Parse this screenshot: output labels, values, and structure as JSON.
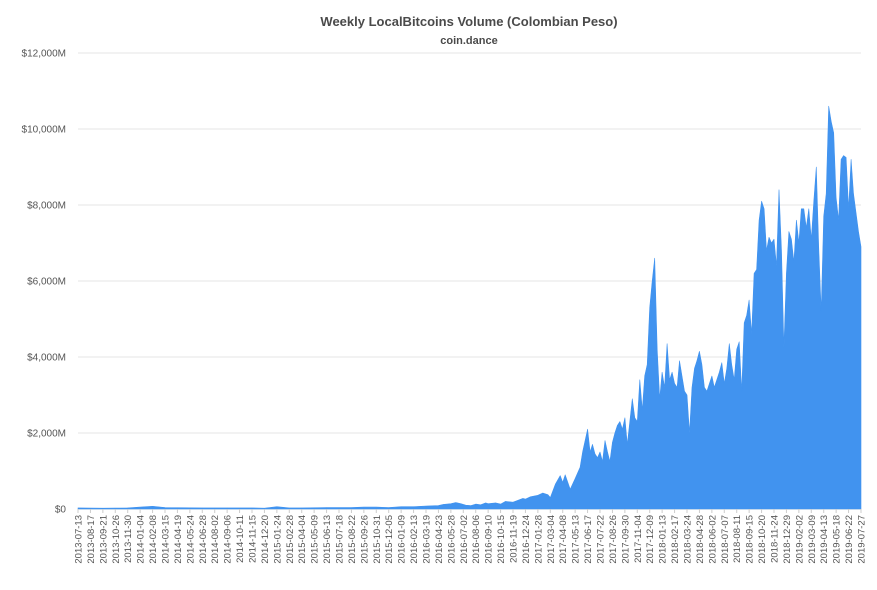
{
  "chart_data": {
    "type": "area",
    "title": "Weekly LocalBitcoins Volume (Colombian Peso)",
    "subtitle": "coin.dance",
    "xlabel": "",
    "ylabel": "",
    "ylim": [
      0,
      12000
    ],
    "y_unit": "M",
    "y_ticks": [
      "$0",
      "$2,000M",
      "$4,000M",
      "$6,000M",
      "$8,000M",
      "$10,000M",
      "$12,000M"
    ],
    "x_tick_labels": [
      "2013-07-13",
      "2013-08-17",
      "2013-09-21",
      "2013-10-26",
      "2013-11-30",
      "2014-01-04",
      "2014-02-08",
      "2014-03-15",
      "2014-04-19",
      "2014-05-24",
      "2014-06-28",
      "2014-08-02",
      "2014-09-06",
      "2014-10-11",
      "2014-11-15",
      "2014-12-20",
      "2015-01-24",
      "2015-02-28",
      "2015-04-04",
      "2015-05-09",
      "2015-06-13",
      "2015-07-18",
      "2015-08-22",
      "2015-09-26",
      "2015-10-31",
      "2015-12-05",
      "2016-01-09",
      "2016-02-13",
      "2016-03-19",
      "2016-04-23",
      "2016-05-28",
      "2016-07-02",
      "2016-08-06",
      "2016-09-10",
      "2016-10-15",
      "2016-11-19",
      "2016-12-24",
      "2017-01-28",
      "2017-03-04",
      "2017-04-08",
      "2017-05-13",
      "2017-06-17",
      "2017-07-22",
      "2017-08-26",
      "2017-09-30",
      "2017-11-04",
      "2017-12-09",
      "2018-01-13",
      "2018-02-17",
      "2018-03-24",
      "2018-04-28",
      "2018-06-02",
      "2018-07-07",
      "2018-08-11",
      "2018-09-15",
      "2018-10-20",
      "2018-11-24",
      "2018-12-29",
      "2019-02-02",
      "2019-03-09",
      "2019-04-13",
      "2019-05-18",
      "2019-06-22",
      "2019-07-27"
    ],
    "series": [
      {
        "color": "#4193ef",
        "points": [
          [
            "2013-07-13",
            30
          ],
          [
            "2013-09-21",
            20
          ],
          [
            "2013-11-30",
            30
          ],
          [
            "2014-01-04",
            50
          ],
          [
            "2014-02-08",
            70
          ],
          [
            "2014-03-15",
            40
          ],
          [
            "2014-06-28",
            30
          ],
          [
            "2014-09-06",
            30
          ],
          [
            "2014-11-15",
            30
          ],
          [
            "2014-12-20",
            20
          ],
          [
            "2015-01-24",
            60
          ],
          [
            "2015-02-28",
            30
          ],
          [
            "2015-04-04",
            30
          ],
          [
            "2015-06-13",
            40
          ],
          [
            "2015-08-22",
            40
          ],
          [
            "2015-09-26",
            50
          ],
          [
            "2015-10-31",
            50
          ],
          [
            "2015-12-05",
            40
          ],
          [
            "2016-01-09",
            60
          ],
          [
            "2016-02-13",
            60
          ],
          [
            "2016-03-19",
            80
          ],
          [
            "2016-04-23",
            90
          ],
          [
            "2016-05-07",
            120
          ],
          [
            "2016-05-28",
            140
          ],
          [
            "2016-06-11",
            170
          ],
          [
            "2016-06-25",
            140
          ],
          [
            "2016-07-09",
            100
          ],
          [
            "2016-07-23",
            90
          ],
          [
            "2016-08-06",
            130
          ],
          [
            "2016-08-20",
            110
          ],
          [
            "2016-09-03",
            160
          ],
          [
            "2016-09-10",
            140
          ],
          [
            "2016-10-01",
            160
          ],
          [
            "2016-10-15",
            130
          ],
          [
            "2016-10-29",
            200
          ],
          [
            "2016-11-19",
            180
          ],
          [
            "2016-12-03",
            230
          ],
          [
            "2016-12-17",
            280
          ],
          [
            "2016-12-24",
            260
          ],
          [
            "2017-01-07",
            320
          ],
          [
            "2017-01-28",
            360
          ],
          [
            "2017-02-11",
            420
          ],
          [
            "2017-02-25",
            380
          ],
          [
            "2017-03-04",
            300
          ],
          [
            "2017-03-18",
            650
          ],
          [
            "2017-04-01",
            880
          ],
          [
            "2017-04-08",
            700
          ],
          [
            "2017-04-15",
            900
          ],
          [
            "2017-04-29",
            520
          ],
          [
            "2017-05-13",
            800
          ],
          [
            "2017-05-27",
            1100
          ],
          [
            "2017-06-03",
            1500
          ],
          [
            "2017-06-10",
            1800
          ],
          [
            "2017-06-17",
            2100
          ],
          [
            "2017-06-24",
            1500
          ],
          [
            "2017-07-01",
            1700
          ],
          [
            "2017-07-08",
            1450
          ],
          [
            "2017-07-15",
            1350
          ],
          [
            "2017-07-22",
            1500
          ],
          [
            "2017-07-29",
            1250
          ],
          [
            "2017-08-05",
            1800
          ],
          [
            "2017-08-12",
            1500
          ],
          [
            "2017-08-19",
            1250
          ],
          [
            "2017-08-26",
            1750
          ],
          [
            "2017-09-02",
            2000
          ],
          [
            "2017-09-09",
            2200
          ],
          [
            "2017-09-16",
            2300
          ],
          [
            "2017-09-23",
            2100
          ],
          [
            "2017-09-30",
            2400
          ],
          [
            "2017-10-07",
            1700
          ],
          [
            "2017-10-14",
            2300
          ],
          [
            "2017-10-21",
            2900
          ],
          [
            "2017-10-28",
            2400
          ],
          [
            "2017-11-04",
            2300
          ],
          [
            "2017-11-11",
            3400
          ],
          [
            "2017-11-18",
            2600
          ],
          [
            "2017-11-25",
            3500
          ],
          [
            "2017-12-02",
            3800
          ],
          [
            "2017-12-09",
            5300
          ],
          [
            "2017-12-16",
            6000
          ],
          [
            "2017-12-23",
            6600
          ],
          [
            "2017-12-30",
            4200
          ],
          [
            "2018-01-06",
            2900
          ],
          [
            "2018-01-13",
            3600
          ],
          [
            "2018-01-20",
            3200
          ],
          [
            "2018-01-27",
            4350
          ],
          [
            "2018-02-03",
            3400
          ],
          [
            "2018-02-10",
            3600
          ],
          [
            "2018-02-17",
            3300
          ],
          [
            "2018-02-24",
            3200
          ],
          [
            "2018-03-03",
            3900
          ],
          [
            "2018-03-10",
            3500
          ],
          [
            "2018-03-17",
            3100
          ],
          [
            "2018-03-24",
            3000
          ],
          [
            "2018-03-31",
            2000
          ],
          [
            "2018-04-07",
            3200
          ],
          [
            "2018-04-14",
            3700
          ],
          [
            "2018-04-21",
            3900
          ],
          [
            "2018-04-28",
            4150
          ],
          [
            "2018-05-05",
            3800
          ],
          [
            "2018-05-12",
            3200
          ],
          [
            "2018-05-19",
            3100
          ],
          [
            "2018-05-26",
            3300
          ],
          [
            "2018-06-02",
            3500
          ],
          [
            "2018-06-09",
            3200
          ],
          [
            "2018-06-16",
            3400
          ],
          [
            "2018-06-23",
            3600
          ],
          [
            "2018-06-30",
            3850
          ],
          [
            "2018-07-07",
            3300
          ],
          [
            "2018-07-14",
            3700
          ],
          [
            "2018-07-21",
            4350
          ],
          [
            "2018-07-28",
            3800
          ],
          [
            "2018-08-04",
            3400
          ],
          [
            "2018-08-11",
            4200
          ],
          [
            "2018-08-18",
            4400
          ],
          [
            "2018-08-25",
            3100
          ],
          [
            "2018-09-01",
            4900
          ],
          [
            "2018-09-08",
            5100
          ],
          [
            "2018-09-15",
            5500
          ],
          [
            "2018-09-22",
            4600
          ],
          [
            "2018-09-29",
            6200
          ],
          [
            "2018-10-06",
            6300
          ],
          [
            "2018-10-13",
            7600
          ],
          [
            "2018-10-20",
            8100
          ],
          [
            "2018-10-27",
            7900
          ],
          [
            "2018-11-03",
            6800
          ],
          [
            "2018-11-10",
            7150
          ],
          [
            "2018-11-17",
            7000
          ],
          [
            "2018-11-24",
            7100
          ],
          [
            "2018-12-01",
            6400
          ],
          [
            "2018-12-08",
            8400
          ],
          [
            "2018-12-15",
            6800
          ],
          [
            "2018-12-22",
            4250
          ],
          [
            "2018-12-29",
            6200
          ],
          [
            "2019-01-05",
            7300
          ],
          [
            "2019-01-12",
            7100
          ],
          [
            "2019-01-19",
            6500
          ],
          [
            "2019-01-26",
            7600
          ],
          [
            "2019-02-02",
            7000
          ],
          [
            "2019-02-09",
            7900
          ],
          [
            "2019-02-16",
            7900
          ],
          [
            "2019-02-23",
            7400
          ],
          [
            "2019-03-02",
            7900
          ],
          [
            "2019-03-09",
            7100
          ],
          [
            "2019-03-16",
            8100
          ],
          [
            "2019-03-23",
            9000
          ],
          [
            "2019-03-30",
            6900
          ],
          [
            "2019-04-06",
            5200
          ],
          [
            "2019-04-13",
            7700
          ],
          [
            "2019-04-20",
            8300
          ],
          [
            "2019-04-27",
            10600
          ],
          [
            "2019-05-04",
            10200
          ],
          [
            "2019-05-11",
            9900
          ],
          [
            "2019-05-18",
            8200
          ],
          [
            "2019-05-25",
            7600
          ],
          [
            "2019-06-01",
            9200
          ],
          [
            "2019-06-08",
            9300
          ],
          [
            "2019-06-15",
            9250
          ],
          [
            "2019-06-22",
            7900
          ],
          [
            "2019-06-29",
            9200
          ],
          [
            "2019-07-06",
            8300
          ],
          [
            "2019-07-13",
            7800
          ],
          [
            "2019-07-20",
            7300
          ],
          [
            "2019-07-27",
            6900
          ]
        ]
      }
    ]
  }
}
